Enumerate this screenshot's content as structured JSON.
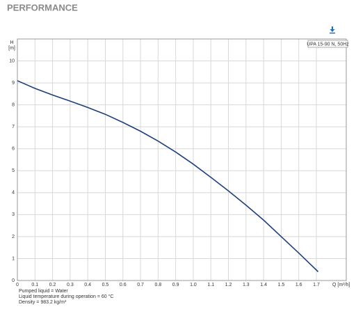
{
  "chart_data": {
    "type": "line",
    "title": "PERFORMANCE",
    "y_label_top": "H",
    "y_label_unit": "[m]",
    "x_label": "Q [m³/h]",
    "x": [
      0,
      0.1,
      0.2,
      0.3,
      0.4,
      0.5,
      0.6,
      0.7,
      0.8,
      0.9,
      1.0,
      1.1,
      1.2,
      1.3,
      1.4,
      1.5,
      1.6,
      1.71
    ],
    "series": [
      {
        "name": "UPA 15-90 N, 50Hz",
        "color": "#1f3f78",
        "values": [
          9.1,
          8.75,
          8.45,
          8.17,
          7.88,
          7.57,
          7.2,
          6.8,
          6.35,
          5.85,
          5.3,
          4.7,
          4.08,
          3.43,
          2.75,
          2.0,
          1.25,
          0.4
        ]
      }
    ],
    "xlim": [
      0,
      1.87
    ],
    "ylim": [
      0,
      11
    ],
    "xticks": [
      0,
      0.1,
      0.2,
      0.3,
      0.4,
      0.5,
      0.6,
      0.7,
      0.8,
      0.9,
      {
        "value": 1,
        "label": "1.0"
      },
      1.1,
      1.2,
      1.3,
      1.4,
      1.5,
      1.6,
      1.7
    ],
    "yticks": [
      0,
      1,
      2,
      3,
      4,
      5,
      6,
      7,
      8,
      9,
      10
    ],
    "grid": true,
    "notes": [
      "Pumped liquid = Water",
      "Liquid temperature during operation = 60 °C",
      "Density = 983.2 kg/m³"
    ]
  }
}
